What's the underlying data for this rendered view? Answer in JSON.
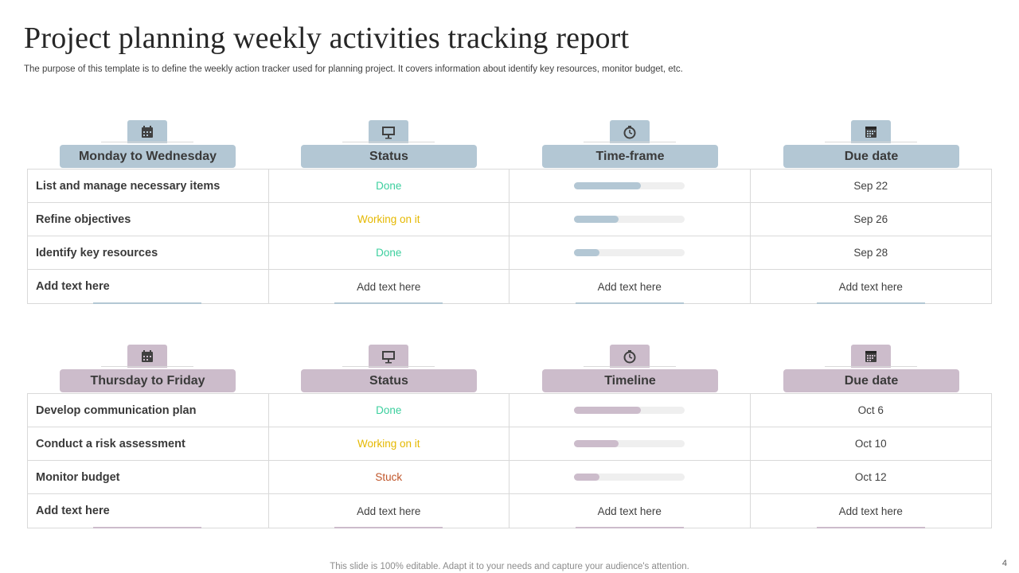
{
  "title": "Project planning weekly activities tracking report",
  "subtitle": "The purpose of this template is to define the weekly action tracker used for planning project. It covers information about identify key resources, monitor budget, etc.",
  "colors": {
    "section1_accent": "#b3c7d4",
    "section2_accent": "#ccbccb",
    "done": "#3ccf9e",
    "working": "#e5b800",
    "stuck": "#c0562b"
  },
  "sections": [
    {
      "headers": [
        {
          "label": "Monday to Wednesday",
          "icon": "calendar-icon"
        },
        {
          "label": "Status",
          "icon": "presentation-board-icon"
        },
        {
          "label": "Time-frame",
          "icon": "stopwatch-icon"
        },
        {
          "label": "Due date",
          "icon": "calendar-grid-icon"
        }
      ],
      "rows": [
        {
          "task": "List and manage necessary items",
          "status": "Done",
          "progress": 0.6,
          "due": "Sep 22"
        },
        {
          "task": "Refine objectives",
          "status": "Working on it",
          "progress": 0.4,
          "due": "Sep 26"
        },
        {
          "task": "Identify key resources",
          "status": "Done",
          "progress": 0.23,
          "due": "Sep 28"
        },
        {
          "task": "Add  text here",
          "status": "Add text here",
          "timeframe": "Add text here",
          "due": "Add text here"
        }
      ]
    },
    {
      "headers": [
        {
          "label": "Thursday to Friday",
          "icon": "calendar-icon"
        },
        {
          "label": "Status",
          "icon": "presentation-board-icon"
        },
        {
          "label": "Timeline",
          "icon": "stopwatch-icon"
        },
        {
          "label": "Due date",
          "icon": "calendar-grid-icon"
        }
      ],
      "rows": [
        {
          "task": "Develop communication plan",
          "status": "Done",
          "progress": 0.6,
          "due": "Oct 6"
        },
        {
          "task": "Conduct a risk assessment",
          "status": "Working on it",
          "progress": 0.4,
          "due": "Oct 10"
        },
        {
          "task": "Monitor budget",
          "status": "Stuck",
          "progress": 0.23,
          "due": "Oct 12"
        },
        {
          "task": "Add  text here",
          "status": "Add text here",
          "timeline": "Add text here",
          "due": "Add text here"
        }
      ]
    }
  ],
  "footer_note": "This slide is 100% editable. Adapt it to your needs and capture your audience's attention.",
  "page_number": "4"
}
